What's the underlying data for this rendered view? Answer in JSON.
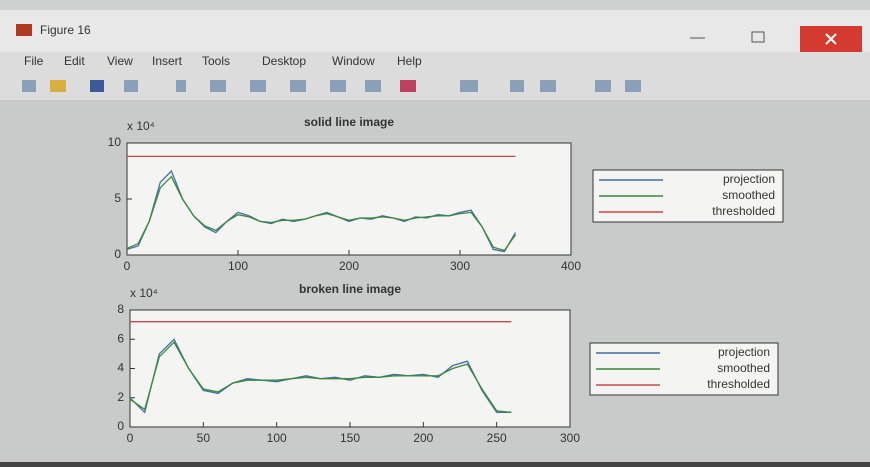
{
  "window": {
    "title": "Figure 16",
    "menu": [
      "File",
      "Edit",
      "View",
      "Insert",
      "Tools",
      "Desktop",
      "Window",
      "Help"
    ]
  },
  "chart_data": [
    {
      "type": "line",
      "title": "solid line image",
      "multiplier": "x 10⁴",
      "x": [
        0,
        10,
        20,
        30,
        40,
        50,
        60,
        70,
        80,
        90,
        100,
        110,
        120,
        130,
        140,
        150,
        160,
        170,
        180,
        190,
        200,
        210,
        220,
        230,
        240,
        250,
        260,
        270,
        280,
        290,
        300,
        310,
        320,
        330,
        340,
        350
      ],
      "series": [
        {
          "name": "projection",
          "color": "#3f6fa8",
          "values": [
            0.5,
            0.8,
            3,
            6.5,
            7.5,
            5,
            3.5,
            2.5,
            2,
            3,
            3.8,
            3.5,
            3,
            2.8,
            3.2,
            3,
            3.2,
            3.5,
            3.8,
            3.4,
            3,
            3.3,
            3.2,
            3.5,
            3.3,
            3,
            3.4,
            3.3,
            3.6,
            3.5,
            3.8,
            4,
            2.5,
            0.5,
            0.3,
            2
          ]
        },
        {
          "name": "smoothed",
          "color": "#3a8a3a",
          "values": [
            0.6,
            1,
            3,
            6,
            7,
            5,
            3.5,
            2.6,
            2.2,
            3,
            3.6,
            3.4,
            3,
            2.9,
            3.1,
            3.1,
            3.2,
            3.5,
            3.7,
            3.4,
            3.1,
            3.3,
            3.3,
            3.4,
            3.3,
            3.1,
            3.3,
            3.4,
            3.5,
            3.5,
            3.7,
            3.8,
            2.5,
            0.7,
            0.4,
            1.8
          ]
        },
        {
          "name": "thresholded",
          "color": "#c44a4a",
          "values": [
            8.8,
            8.8,
            8.8,
            8.8,
            8.8,
            8.8,
            8.8,
            8.8,
            8.8,
            8.8,
            8.8,
            8.8,
            8.8,
            8.8,
            8.8,
            8.8,
            8.8,
            8.8,
            8.8,
            8.8,
            8.8,
            8.8,
            8.8,
            8.8,
            8.8,
            8.8,
            8.8,
            8.8,
            8.8,
            8.8,
            8.8,
            8.8,
            8.8,
            8.8,
            8.8,
            8.8
          ]
        }
      ],
      "xlim": [
        0,
        400
      ],
      "ylim": [
        0,
        10
      ],
      "xticks": [
        0,
        100,
        200,
        300,
        400
      ],
      "yticks": [
        0,
        5,
        10
      ],
      "grid": false
    },
    {
      "type": "line",
      "title": "broken line image",
      "multiplier": "x 10⁴",
      "x": [
        0,
        10,
        20,
        30,
        40,
        50,
        60,
        70,
        80,
        90,
        100,
        110,
        120,
        130,
        140,
        150,
        160,
        170,
        180,
        190,
        200,
        210,
        220,
        230,
        240,
        250,
        260
      ],
      "series": [
        {
          "name": "projection",
          "color": "#3f6fa8",
          "values": [
            2,
            1,
            5,
            6,
            4,
            2.5,
            2.3,
            3,
            3.3,
            3.2,
            3.1,
            3.3,
            3.5,
            3.3,
            3.4,
            3.2,
            3.5,
            3.4,
            3.6,
            3.5,
            3.6,
            3.4,
            4.2,
            4.5,
            2.5,
            1,
            1
          ]
        },
        {
          "name": "smoothed",
          "color": "#3a8a3a",
          "values": [
            1.9,
            1.2,
            4.8,
            5.8,
            4,
            2.6,
            2.4,
            3,
            3.2,
            3.2,
            3.2,
            3.3,
            3.4,
            3.3,
            3.3,
            3.3,
            3.4,
            3.4,
            3.5,
            3.5,
            3.5,
            3.5,
            4,
            4.3,
            2.6,
            1.1,
            1
          ]
        },
        {
          "name": "thresholded",
          "color": "#c44a4a",
          "values": [
            7.2,
            7.2,
            7.2,
            7.2,
            7.2,
            7.2,
            7.2,
            7.2,
            7.2,
            7.2,
            7.2,
            7.2,
            7.2,
            7.2,
            7.2,
            7.2,
            7.2,
            7.2,
            7.2,
            7.2,
            7.2,
            7.2,
            7.2,
            7.2,
            7.2,
            7.2,
            7.2
          ]
        }
      ],
      "xlim": [
        0,
        300
      ],
      "ylim": [
        0,
        8
      ],
      "xticks": [
        0,
        50,
        100,
        150,
        200,
        250,
        300
      ],
      "yticks": [
        0,
        2,
        4,
        6,
        8
      ],
      "grid": false
    }
  ]
}
